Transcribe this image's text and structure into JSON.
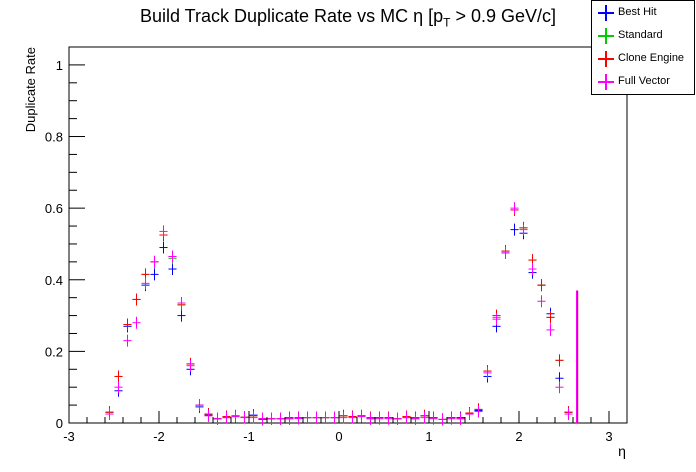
{
  "chart_data": {
    "type": "scatter",
    "title": "Build Track Duplicate Rate vs MC η [pT > 0.9 GeV/c]",
    "title_main": "Build Track Duplicate Rate vs MC η [p",
    "title_sub": "T",
    "title_tail": " > 0.9 GeV/c]",
    "xlabel": "η",
    "ylabel": "Duplicate Rate",
    "xlim": [
      -3.0,
      3.2
    ],
    "ylim": [
      0,
      1.05
    ],
    "xticks": [
      "-3",
      "-2",
      "-1",
      "0",
      "1",
      "2",
      "3"
    ],
    "yticks": [
      "0",
      "0.2",
      "0.4",
      "0.6",
      "0.8",
      "1"
    ],
    "legend_position": "top-right",
    "x": [
      -2.55,
      -2.45,
      -2.35,
      -2.25,
      -2.15,
      -2.05,
      -1.95,
      -1.85,
      -1.75,
      -1.65,
      -1.55,
      -1.45,
      -1.35,
      -1.25,
      -1.15,
      -1.05,
      -0.95,
      -0.85,
      -0.75,
      -0.65,
      -0.55,
      -0.45,
      -0.35,
      -0.25,
      -0.15,
      -0.05,
      0.05,
      0.15,
      0.25,
      0.35,
      0.45,
      0.55,
      0.65,
      0.75,
      0.85,
      0.95,
      1.05,
      1.15,
      1.25,
      1.35,
      1.45,
      1.55,
      1.65,
      1.75,
      1.85,
      1.95,
      2.05,
      2.15,
      2.25,
      2.35,
      2.45,
      2.55
    ],
    "series": [
      {
        "name": "Best Hit",
        "color": "#0000ff",
        "values": [
          0.03,
          0.09,
          0.27,
          0.345,
          0.385,
          0.415,
          0.49,
          0.43,
          0.3,
          0.15,
          0.045,
          0.022,
          0.012,
          0.015,
          0.018,
          0.016,
          0.022,
          0.01,
          0.012,
          0.012,
          0.012,
          0.013,
          0.015,
          0.015,
          0.015,
          0.015,
          0.02,
          0.018,
          0.02,
          0.012,
          0.015,
          0.015,
          0.012,
          0.015,
          0.012,
          0.02,
          0.015,
          0.01,
          0.015,
          0.015,
          0.025,
          0.035,
          0.13,
          0.27,
          0.475,
          0.54,
          0.53,
          0.42,
          0.385,
          0.305,
          0.125,
          0.03
        ]
      },
      {
        "name": "Standard",
        "color": "#00cc00",
        "values": [
          0.03,
          0.13,
          0.275,
          0.345,
          0.415,
          0.45,
          0.525,
          0.46,
          0.33,
          0.165,
          0.05,
          0.025,
          0.012,
          0.018,
          0.02,
          0.016,
          0.02,
          0.012,
          0.012,
          0.012,
          0.015,
          0.015,
          0.015,
          0.015,
          0.015,
          0.015,
          0.02,
          0.018,
          0.02,
          0.015,
          0.015,
          0.015,
          0.012,
          0.018,
          0.015,
          0.02,
          0.015,
          0.01,
          0.015,
          0.012,
          0.028,
          0.038,
          0.145,
          0.295,
          0.48,
          0.595,
          0.545,
          0.455,
          0.385,
          0.295,
          0.175,
          0.03
        ]
      },
      {
        "name": "Clone Engine",
        "color": "#ff0000",
        "values": [
          0.03,
          0.13,
          0.275,
          0.345,
          0.415,
          0.45,
          0.525,
          0.465,
          0.33,
          0.165,
          0.05,
          0.025,
          0.012,
          0.018,
          0.02,
          0.016,
          0.02,
          0.012,
          0.012,
          0.012,
          0.015,
          0.015,
          0.015,
          0.015,
          0.015,
          0.015,
          0.02,
          0.018,
          0.02,
          0.015,
          0.015,
          0.015,
          0.012,
          0.018,
          0.015,
          0.02,
          0.015,
          0.01,
          0.015,
          0.012,
          0.028,
          0.038,
          0.145,
          0.3,
          0.48,
          0.595,
          0.545,
          0.455,
          0.385,
          0.295,
          0.175,
          0.03
        ]
      },
      {
        "name": "Full Vector",
        "color": "#ff00ff",
        "values": [
          0.025,
          0.1,
          0.23,
          0.28,
          0.39,
          0.45,
          0.535,
          0.465,
          0.335,
          0.16,
          0.05,
          0.02,
          0.012,
          0.015,
          0.018,
          0.015,
          0.015,
          0.012,
          0.012,
          0.012,
          0.012,
          0.013,
          0.015,
          0.015,
          0.015,
          0.015,
          0.015,
          0.015,
          0.018,
          0.012,
          0.012,
          0.012,
          0.012,
          0.015,
          0.012,
          0.015,
          0.012,
          0.01,
          0.012,
          0.012,
          0.025,
          0.032,
          0.14,
          0.29,
          0.475,
          0.6,
          0.54,
          0.43,
          0.34,
          0.26,
          0.1,
          0.025
        ]
      }
    ],
    "spike": {
      "name": "Full Vector",
      "x": 2.64,
      "value": 0.37,
      "color": "#ff00ff"
    },
    "spike_red": {
      "name": "Clone Engine",
      "x": 2.64,
      "value": 0.37,
      "color": "#ff0000"
    }
  }
}
